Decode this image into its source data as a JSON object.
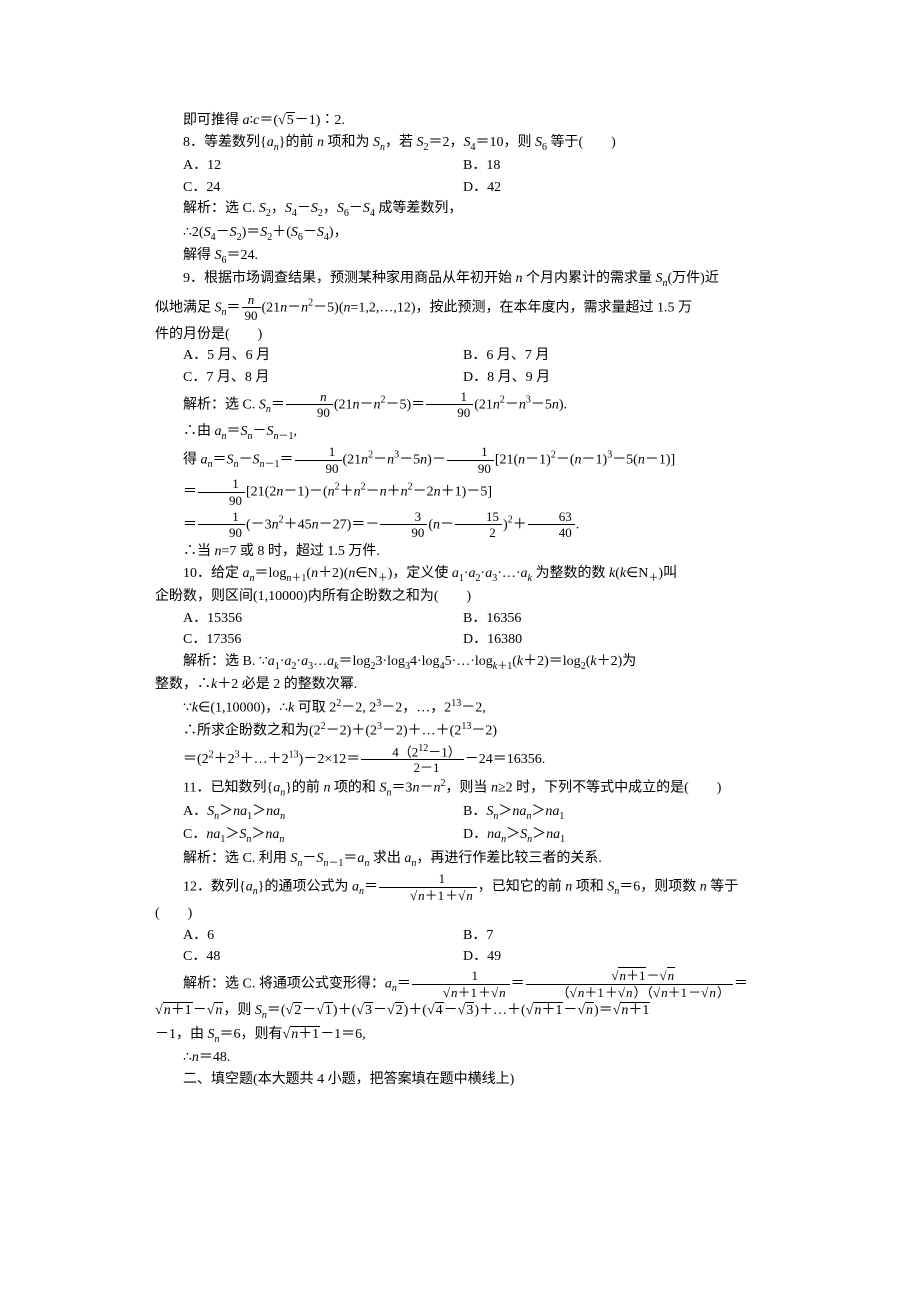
{
  "fonts": {
    "body_family": "SimSun",
    "body_size_pt": 10.5,
    "sub_size_pt": 7.5
  },
  "colors": {
    "text": "#000000",
    "background": "#ffffff"
  },
  "lines": {
    "l01": "即可推得 a∶c＝(√5－1)∶2.",
    "l02": "8．等差数列{aₙ}的前 n 项和为 Sₙ，若 S₂＝2，S₄＝10，则 S₆ 等于(　　)",
    "l03a": "A．12",
    "l03b": "B．18",
    "l04a": "C．24",
    "l04b": "D．42",
    "l05": "解析：选 C. S₂，S₄－S₂，S₆－S₄ 成等差数列，",
    "l06": "∴2(S₄－S₂)＝S₂＋(S₆－S₄)，",
    "l07": "解得 S₆＝24.",
    "l08": "9．根据市场调查结果，预测某种家用商品从年初开始 n 个月内累计的需求量 Sₙ(万件)近",
    "l09a": "似地满足 Sₙ＝",
    "l09b": "(21n－n²－5)(n=1,2,…,12)，按此预测，在本年度内，需求量超过 1.5 万",
    "l10": "件的月份是(　　)",
    "l11a": "A．5 月、6 月",
    "l11b": "B．6 月、7 月",
    "l12a": "C．7 月、8 月",
    "l12b": "D．8 月、9 月",
    "l13a": "解析：选 C. Sₙ＝",
    "l13b": "(21n－n²－5)＝",
    "l13c": "(21n²－n³－5n).",
    "l14": "∴由 aₙ＝Sₙ－Sₙ₋₁,",
    "l15a": "得 aₙ＝Sₙ－Sₙ₋₁＝",
    "l15b": "(21n²－n³－5n)－",
    "l15c": "[21(n－1)²－(n－1)³－5(n－1)]",
    "l16a": "＝",
    "l16b": "[21(2n－1)－(n²＋n²－n＋n²－2n＋1)－5]",
    "l17a": "＝",
    "l17b": "(－3n²＋45n－27)＝－",
    "l17c": "(n－",
    "l17d": ")²＋",
    "l18": "∴当 n=7 或 8 时，超过 1.5 万件.",
    "l19": "10．给定 aₙ＝logₙ₊₁(n＋2)(n∈N₊)，定义使 a₁·a₂·a₃·…·aₖ 为整数的数 k(k∈N₊)叫",
    "l20": "企盼数，则区间(1,10000)内所有企盼数之和为(　　)",
    "l21a": "A．15356",
    "l21b": "B．16356",
    "l22a": "C．17356",
    "l22b": "D．16380",
    "l23": "解析：选 B. ∵a₁·a₂·a₃…aₖ＝log₂3·log₃4·log₄5·…·logₖ₊₁(k＋2)＝log₂(k＋2)为",
    "l24": "整数，∴k＋2 必是 2 的整数次幂.",
    "l25": "∵k∈(1,10000)，∴k 可取 2²－2, 2³－2，…，2¹³－2,",
    "l26": "∴所求企盼数之和为(2²－2)＋(2³－2)＋…＋(2¹³－2)",
    "l27a": "＝(2²＋2³＋…＋2¹³)－2×12＝",
    "l27b": "－24＝16356.",
    "l28": "11．已知数列{aₙ}的前 n 项的和 Sₙ＝3n－n²，则当 n≥2 时，下列不等式中成立的是(　　)",
    "l29a": "A．Sₙ＞na₁＞naₙ",
    "l29b": "B．Sₙ＞naₙ＞na₁",
    "l30a": "C．na₁＞Sₙ＞naₙ",
    "l30b": "D．naₙ＞Sₙ＞na₁",
    "l31": "解析：选 C. 利用 Sₙ－Sₙ₋₁＝aₙ 求出 aₙ，再进行作差比较三者的关系.",
    "l32a": "12．数列{aₙ}的通项公式为 aₙ＝",
    "l32b": "，已知它的前 n 项和 Sₙ＝6，则项数 n 等于",
    "l33": "(　　)",
    "l34a": "A．6",
    "l34b": "B．7",
    "l35a": "C．48",
    "l35b": "D．49",
    "l36a": "解析：选 C. 将通项公式变形得：aₙ＝",
    "l36b": "＝",
    "l36c": "＝",
    "l37a": "√(n＋1)－√n，则 Sₙ＝(√2－√1)＋(√3－√2)＋(√4－√3)＋…＋(√(n＋1)－√n)＝√(n＋1)",
    "l38": "－1，由 Sₙ＝6，则有√(n＋1)－1＝6,",
    "l39": "∴n＝48.",
    "l40": "二、填空题(本大题共 4 小题，把答案填在题中横线上)",
    "frac_n": "n",
    "frac_90": "90",
    "frac_1": "1",
    "frac_3": "3",
    "frac_15": "15",
    "frac_2": "2",
    "frac_63": "63",
    "frac_40": "40",
    "frac_4212": "4（2¹²－1）",
    "frac_2m1": "2－1",
    "frac_rt1": "√(n＋1)＋√n",
    "frac_rt2": "√(n＋1)－√n",
    "frac_rt3": "（√(n＋1)＋√n）（√(n＋1)－√n）",
    "dot": "."
  }
}
